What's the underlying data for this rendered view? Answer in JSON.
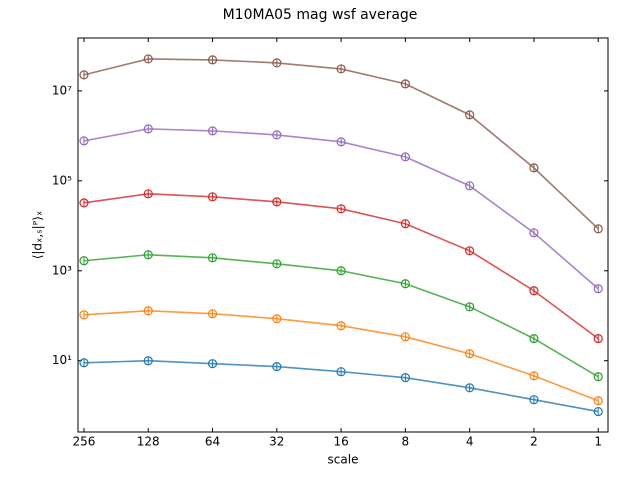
{
  "chart_data": {
    "type": "line",
    "title": "M10MA05 mag wsf average",
    "xlabel": "scale",
    "ylabel": "⟨|dₓ,ₛ|ᴾ⟩ₓ",
    "xscale": "log",
    "yscale": "log",
    "x": [
      256,
      128,
      64,
      32,
      16,
      8,
      4,
      2,
      1
    ],
    "xlim": [
      273,
      0.9
    ],
    "xticks": [
      256,
      128,
      64,
      32,
      16,
      8,
      4,
      2,
      1
    ],
    "ylim": [
      0.26,
      150000000
    ],
    "yticks": [
      {
        "value": 10,
        "label": "10¹"
      },
      {
        "value": 1000,
        "label": "10³"
      },
      {
        "value": 100000,
        "label": "10⁵"
      },
      {
        "value": 10000000,
        "label": "10⁷"
      }
    ],
    "series": [
      {
        "color": "#1f77b4",
        "values": [
          9.0,
          10,
          8.6,
          7.4,
          5.7,
          4.2,
          2.5,
          1.36,
          0.74
        ]
      },
      {
        "color": "#ff7f0e",
        "values": [
          105,
          129,
          111,
          86,
          60,
          34,
          14.3,
          4.6,
          1.29
        ]
      },
      {
        "color": "#2ca02c",
        "values": [
          1670,
          2270,
          1940,
          1430,
          1000,
          514,
          158,
          31,
          4.4
        ]
      },
      {
        "color": "#d62728",
        "values": [
          32400,
          51400,
          44100,
          34100,
          23900,
          11100,
          2780,
          360,
          31
        ]
      },
      {
        "color": "#9467bd",
        "values": [
          774000,
          1430000,
          1290000,
          1050000,
          736000,
          341000,
          77400,
          6980,
          398
        ]
      },
      {
        "color": "#8c564b",
        "values": [
          22700000,
          51400000,
          48900000,
          41900000,
          30800000,
          14300000,
          2930000,
          194000,
          8570
        ]
      }
    ]
  }
}
